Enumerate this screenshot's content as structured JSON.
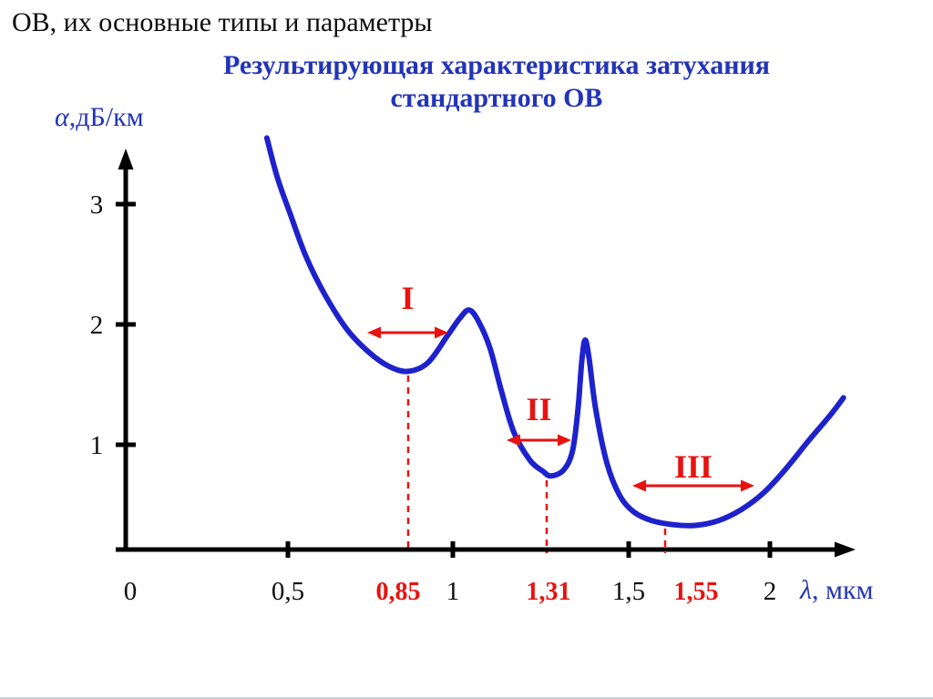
{
  "heading": "ОВ, их основные типы и параметры",
  "chart": {
    "title_line1": "Результирующая характеристика затухания",
    "title_line2": "стандартного ОВ",
    "y_axis_alpha": "α",
    "y_axis_rest": ",дБ/км",
    "x_axis_lambda": "λ",
    "x_axis_rest": ", мкм"
  },
  "chart_data": {
    "type": "line",
    "title": "Результирующая характеристика затухания стандартного ОВ",
    "xlabel": "λ, мкм",
    "ylabel": "α, дБ/км",
    "xlim": [
      0,
      2.3
    ],
    "ylim": [
      0,
      3.6
    ],
    "grid": false,
    "legend": false,
    "x_ticks": [
      {
        "label": "0",
        "value": 0
      },
      {
        "label": "0,5",
        "value": 0.5
      },
      {
        "label": "1",
        "value": 1
      },
      {
        "label": "1,5",
        "value": 1.5
      },
      {
        "label": "2",
        "value": 2
      }
    ],
    "y_ticks": [
      {
        "label": "1",
        "value": 1
      },
      {
        "label": "2",
        "value": 2
      },
      {
        "label": "3",
        "value": 3
      }
    ],
    "transmission_windows": [
      {
        "numeral": "I",
        "wavelength_label": "0,85",
        "wavelength_um": 0.85
      },
      {
        "numeral": "II",
        "wavelength_label": "1,31",
        "wavelength_um": 1.31
      },
      {
        "numeral": "III",
        "wavelength_label": "1,55",
        "wavelength_um": 1.55
      }
    ],
    "series": [
      {
        "name": "attenuation",
        "points": [
          [
            0.427,
            3.55
          ],
          [
            0.46,
            3.22
          ],
          [
            0.5,
            2.92
          ],
          [
            0.55,
            2.56
          ],
          [
            0.61,
            2.24
          ],
          [
            0.68,
            1.95
          ],
          [
            0.75,
            1.76
          ],
          [
            0.81,
            1.65
          ],
          [
            0.868,
            1.61
          ],
          [
            0.93,
            1.68
          ],
          [
            0.99,
            1.9
          ],
          [
            1.03,
            2.05
          ],
          [
            1.06,
            2.12
          ],
          [
            1.09,
            2.02
          ],
          [
            1.125,
            1.8
          ],
          [
            1.16,
            1.45
          ],
          [
            1.2,
            1.1
          ],
          [
            1.25,
            0.87
          ],
          [
            1.29,
            0.78
          ],
          [
            1.315,
            0.74
          ],
          [
            1.355,
            0.79
          ],
          [
            1.383,
            0.95
          ],
          [
            1.4,
            1.3
          ],
          [
            1.412,
            1.7
          ],
          [
            1.422,
            1.87
          ],
          [
            1.434,
            1.73
          ],
          [
            1.455,
            1.3
          ],
          [
            1.49,
            0.85
          ],
          [
            1.53,
            0.58
          ],
          [
            1.575,
            0.44
          ],
          [
            1.63,
            0.37
          ],
          [
            1.7,
            0.335
          ],
          [
            1.77,
            0.33
          ],
          [
            1.84,
            0.37
          ],
          [
            1.91,
            0.46
          ],
          [
            1.98,
            0.6
          ],
          [
            2.05,
            0.8
          ],
          [
            2.12,
            1.03
          ],
          [
            2.19,
            1.25
          ],
          [
            2.23,
            1.39
          ]
        ]
      }
    ],
    "colors": {
      "curve": "#1e22cc",
      "accent_red": "#e8120f",
      "title_blue": "#2334b8",
      "axis": "#000000"
    }
  }
}
